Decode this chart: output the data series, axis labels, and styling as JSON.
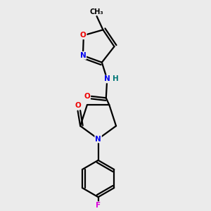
{
  "bg_color": "#ebebeb",
  "bond_color": "#000000",
  "atom_colors": {
    "N": "#0000ee",
    "O": "#ee0000",
    "F": "#dd00dd",
    "H": "#007777",
    "C": "#000000"
  },
  "lw": 1.6,
  "fontsize": 8.5
}
